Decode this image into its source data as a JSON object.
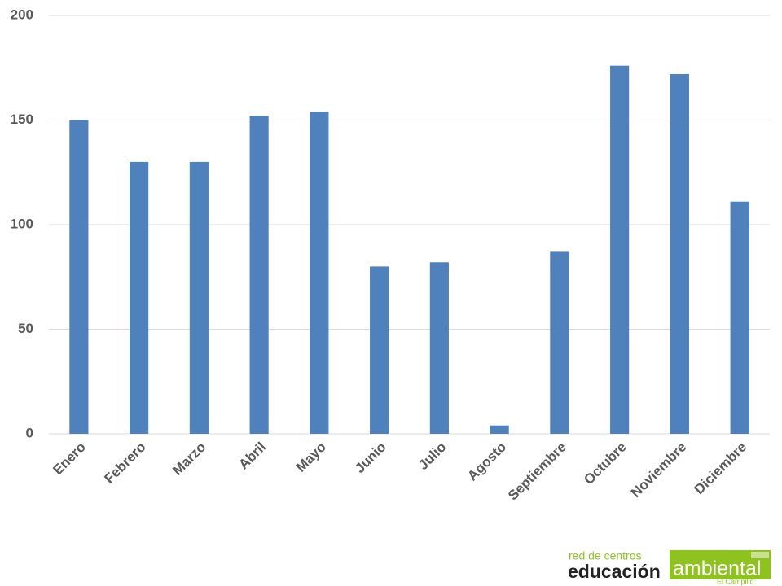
{
  "chart_data": {
    "type": "bar",
    "categories": [
      "Enero",
      "Febrero",
      "Marzo",
      "Abril",
      "Mayo",
      "Junio",
      "Julio",
      "Agosto",
      "Septiembre",
      "Octubre",
      "Noviembre",
      "Diciembre"
    ],
    "values": [
      150,
      130,
      130,
      152,
      154,
      80,
      82,
      4,
      87,
      176,
      172,
      111
    ],
    "color": "#4f81bd",
    "ylim": [
      0,
      200
    ],
    "yticks": [
      0,
      50,
      100,
      150,
      200
    ],
    "grid": true
  },
  "logo": {
    "top": "red de centros",
    "left": "educación",
    "box": "ambiental",
    "bottom": "El Campillo"
  }
}
